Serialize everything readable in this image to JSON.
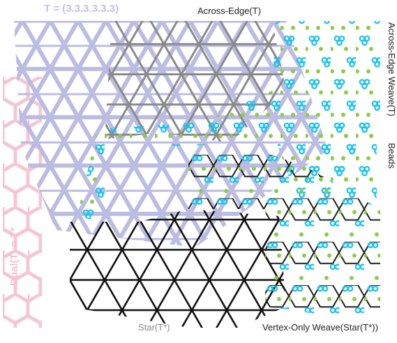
{
  "labels": {
    "triangular_tiling": "T = (3.3.3.3.3.3)",
    "across_edge": "Across-Edge(T)",
    "across_edge_weave": "Across-Edge Weave(T)",
    "beads": "Beads",
    "dual": "Dual(T) = T*",
    "star": "Star(T*)",
    "vertex_only_weave": "Vertex-Only Weave(Star(T*))"
  },
  "colors": {
    "triangular_tiling": "#b8b8e0",
    "dual_hexagons": "#f4c6d4",
    "across_edge_lines": "#8a8a8a",
    "star_lines": "#111111",
    "bead_cyan": "#1ec3ee",
    "bead_green": "#8dcc4a",
    "weave_dark": "#1e1e1e"
  }
}
